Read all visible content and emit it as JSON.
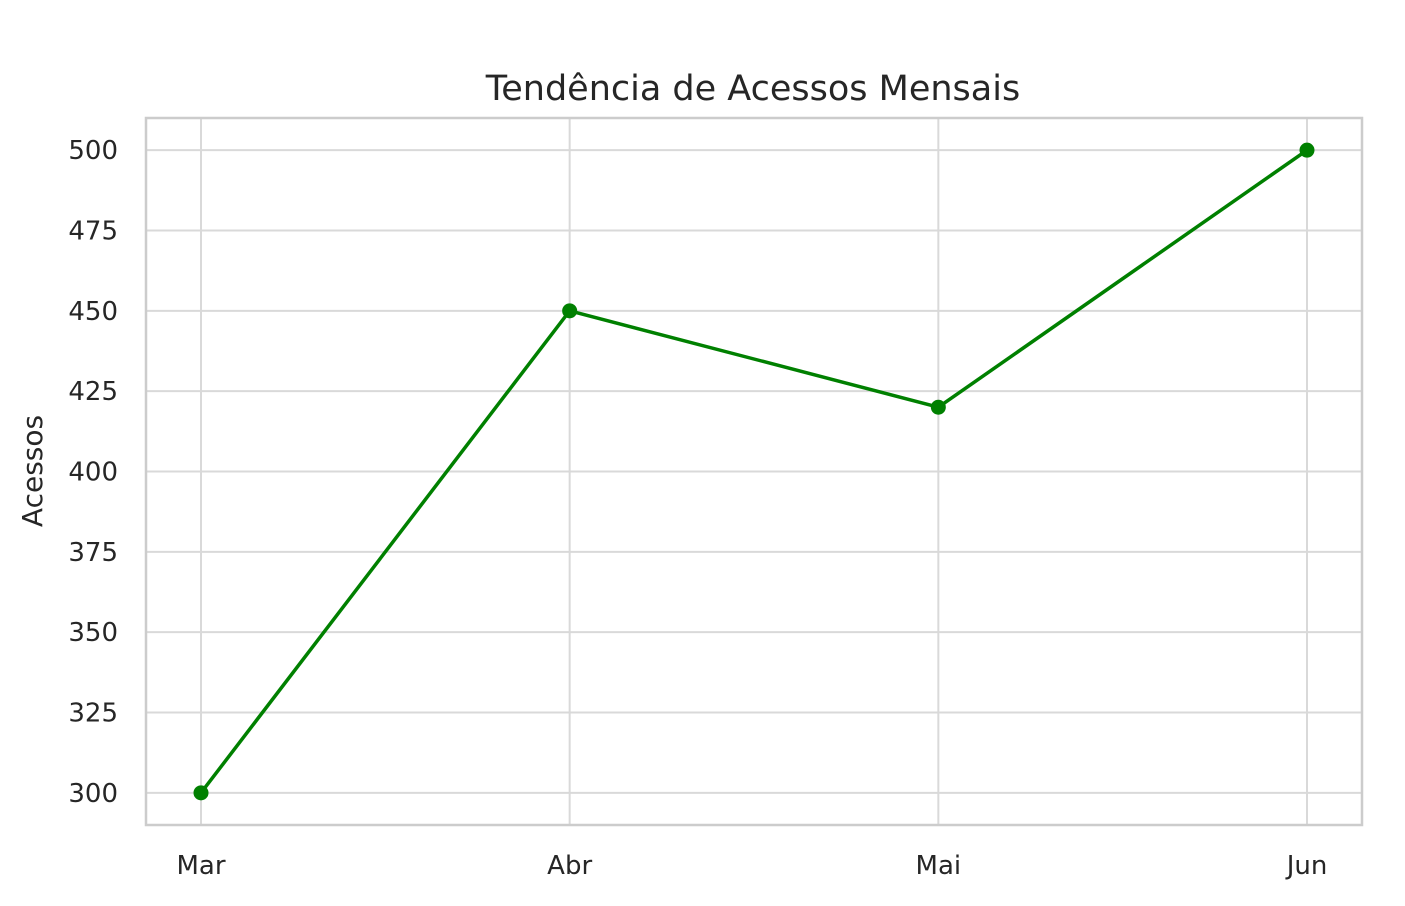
{
  "chart_data": {
    "type": "line",
    "title": "Tendência de Acessos Mensais",
    "xlabel": "",
    "ylabel": "Acessos",
    "categories": [
      "Mar",
      "Abr",
      "Mai",
      "Jun"
    ],
    "series": [
      {
        "values": [
          300,
          450,
          420,
          500
        ],
        "color": "#008000",
        "marker": "circle"
      }
    ],
    "ylim": [
      290,
      510
    ],
    "yticks": [
      300,
      325,
      350,
      375,
      400,
      425,
      450,
      475,
      500
    ],
    "grid": true,
    "legend": "none"
  }
}
